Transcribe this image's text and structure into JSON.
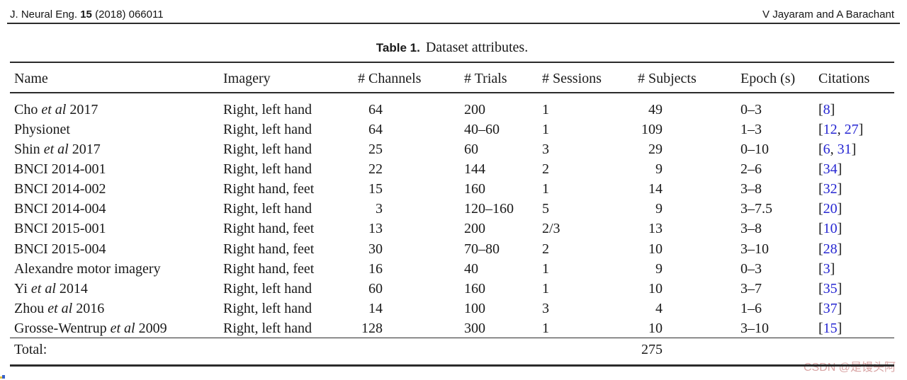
{
  "page_header": {
    "journal_pre": "J. Neural Eng. ",
    "journal_bold": "15",
    "journal_post": " (2018) 066011",
    "authors": "V Jayaram and A Barachant"
  },
  "table": {
    "title_label": "Table 1.",
    "title_caption": "Dataset attributes.",
    "columns": [
      "Name",
      "Imagery",
      "# Channels",
      "# Trials",
      "# Sessions",
      "# Subjects",
      "Epoch (s)",
      "Citations"
    ],
    "rows": [
      {
        "name_parts": [
          {
            "t": "Cho ",
            "em": false
          },
          {
            "t": "et al",
            "em": true
          },
          {
            "t": " 2017",
            "em": false
          }
        ],
        "imagery": "Right, left hand",
        "channels": "64",
        "trials": "200",
        "sessions": "1",
        "subjects": "49",
        "epoch": "0–3",
        "citations": [
          8
        ]
      },
      {
        "name_parts": [
          {
            "t": "Physionet",
            "em": false
          }
        ],
        "imagery": "Right, left hand",
        "channels": "64",
        "trials": "40–60",
        "sessions": "1",
        "subjects": "109",
        "epoch": "1–3",
        "citations": [
          12,
          27
        ]
      },
      {
        "name_parts": [
          {
            "t": "Shin ",
            "em": false
          },
          {
            "t": "et al",
            "em": true
          },
          {
            "t": " 2017",
            "em": false
          }
        ],
        "imagery": "Right, left hand",
        "channels": "25",
        "trials": "60",
        "sessions": "3",
        "subjects": "29",
        "epoch": "0–10",
        "citations": [
          6,
          31
        ]
      },
      {
        "name_parts": [
          {
            "t": "BNCI 2014-001",
            "em": false
          }
        ],
        "imagery": "Right, left hand",
        "channels": "22",
        "trials": "144",
        "sessions": "2",
        "subjects": "9",
        "epoch": "2–6",
        "citations": [
          34
        ]
      },
      {
        "name_parts": [
          {
            "t": "BNCI 2014-002",
            "em": false
          }
        ],
        "imagery": "Right hand, feet",
        "channels": "15",
        "trials": "160",
        "sessions": "1",
        "subjects": "14",
        "epoch": "3–8",
        "citations": [
          32
        ]
      },
      {
        "name_parts": [
          {
            "t": "BNCI 2014-004",
            "em": false
          }
        ],
        "imagery": "Right, left hand",
        "channels": "3",
        "trials": "120–160",
        "sessions": "5",
        "subjects": "9",
        "epoch": "3–7.5",
        "citations": [
          20
        ]
      },
      {
        "name_parts": [
          {
            "t": "BNCI 2015-001",
            "em": false
          }
        ],
        "imagery": "Right hand, feet",
        "channels": "13",
        "trials": "200",
        "sessions": "2/3",
        "subjects": "13",
        "epoch": "3–8",
        "citations": [
          10
        ]
      },
      {
        "name_parts": [
          {
            "t": "BNCI 2015-004",
            "em": false
          }
        ],
        "imagery": "Right hand, feet",
        "channels": "30",
        "trials": "70–80",
        "sessions": "2",
        "subjects": "10",
        "epoch": "3–10",
        "citations": [
          28
        ]
      },
      {
        "name_parts": [
          {
            "t": "Alexandre motor imagery",
            "em": false
          }
        ],
        "imagery": "Right hand, feet",
        "channels": "16",
        "trials": "40",
        "sessions": "1",
        "subjects": "9",
        "epoch": "0–3",
        "citations": [
          3
        ]
      },
      {
        "name_parts": [
          {
            "t": "Yi ",
            "em": false
          },
          {
            "t": "et al",
            "em": true
          },
          {
            "t": " 2014",
            "em": false
          }
        ],
        "imagery": "Right, left hand",
        "channels": "60",
        "trials": "160",
        "sessions": "1",
        "subjects": "10",
        "epoch": "3–7",
        "citations": [
          35
        ]
      },
      {
        "name_parts": [
          {
            "t": "Zhou ",
            "em": false
          },
          {
            "t": "et al",
            "em": true
          },
          {
            "t": " 2016",
            "em": false
          }
        ],
        "imagery": "Right, left hand",
        "channels": "14",
        "trials": "100",
        "sessions": "3",
        "subjects": "4",
        "epoch": "1–6",
        "citations": [
          37
        ]
      },
      {
        "name_parts": [
          {
            "t": "Grosse-Wentrup ",
            "em": false
          },
          {
            "t": "et al",
            "em": true
          },
          {
            "t": " 2009",
            "em": false
          }
        ],
        "imagery": "Right, left hand",
        "channels": "128",
        "trials": "300",
        "sessions": "1",
        "subjects": "10",
        "epoch": "3–10",
        "citations": [
          15
        ]
      }
    ],
    "total_label": "Total:",
    "total_subjects": "275"
  },
  "watermark": {
    "text": "CSDN @是馒头阿"
  },
  "colors": {
    "link": "#2626d2",
    "text": "#1a1a1a",
    "rule": "#2b2b2b",
    "watermark": "#d69e9e"
  }
}
